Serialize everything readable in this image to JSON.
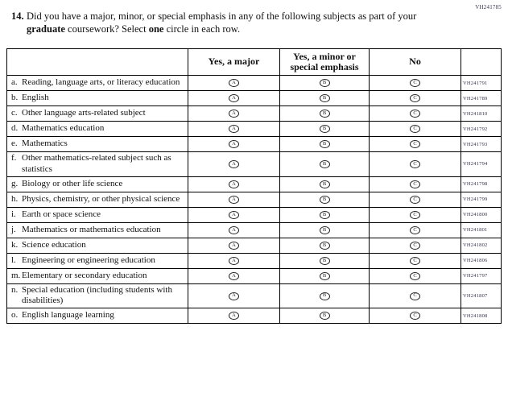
{
  "form_code": "VH241785",
  "question": {
    "number": "14.",
    "segments": [
      {
        "text": "Did you have a major, minor, or special emphasis in any of the following subjects as part of your ",
        "bold": false
      },
      {
        "text": "graduate",
        "bold": true
      },
      {
        "text": " coursework? Select ",
        "bold": false
      },
      {
        "text": "one",
        "bold": true
      },
      {
        "text": " circle in each row.",
        "bold": false
      }
    ]
  },
  "table": {
    "headers": [
      "",
      "Yes, a major",
      "Yes, a minor or special emphasis",
      "No",
      ""
    ],
    "option_keys": [
      "yes-major",
      "yes-minor-or-special-emphasis",
      "no"
    ],
    "bubble_letters": [
      "A",
      "B",
      "C"
    ],
    "rows": [
      {
        "letter": "a.",
        "label": "Reading, language arts, or literacy education",
        "code": "VH241791"
      },
      {
        "letter": "b.",
        "label": "English",
        "code": "VH241789"
      },
      {
        "letter": "c.",
        "label": "Other language arts-related subject",
        "code": "VH241810"
      },
      {
        "letter": "d.",
        "label": "Mathematics education",
        "code": "VH241792"
      },
      {
        "letter": "e.",
        "label": "Mathematics",
        "code": "VH241793"
      },
      {
        "letter": "f.",
        "label": "Other mathematics-related subject such as statistics",
        "code": "VH241794"
      },
      {
        "letter": "g.",
        "label": "Biology or other life science",
        "code": "VH241798"
      },
      {
        "letter": "h.",
        "label": "Physics, chemistry, or other physical science",
        "code": "VH241799"
      },
      {
        "letter": "i.",
        "label": "Earth or space science",
        "code": "VH241800"
      },
      {
        "letter": "j.",
        "label": "Mathematics or mathematics education",
        "code": "VH241801"
      },
      {
        "letter": "k.",
        "label": "Science education",
        "code": "VH241802"
      },
      {
        "letter": "l.",
        "label": "Engineering or engineering education",
        "code": "VH241806"
      },
      {
        "letter": "m.",
        "label": "Elementary or secondary education",
        "code": "VH241797"
      },
      {
        "letter": "n.",
        "label": "Special education (including students with disabilities)",
        "code": "VH241807"
      },
      {
        "letter": "o.",
        "label": "English language learning",
        "code": "VH241808"
      }
    ]
  }
}
